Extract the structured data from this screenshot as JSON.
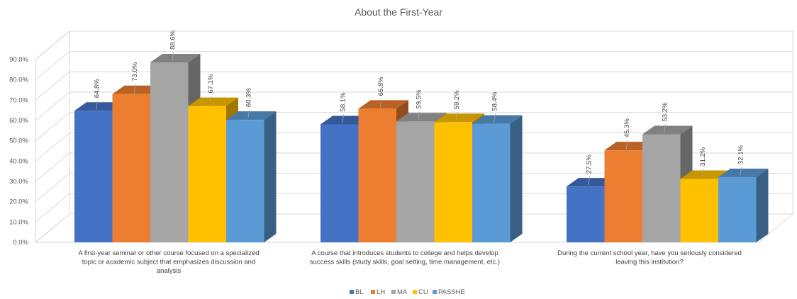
{
  "chart_data": {
    "type": "bar",
    "style": "3d-clustered-column",
    "title": "About the First-Year",
    "xlabel": "",
    "ylabel": "",
    "ylim": [
      0,
      0.9
    ],
    "yticks": [
      "0.0%",
      "10.0%",
      "20.0%",
      "30.0%",
      "40.0%",
      "50.0%",
      "60.0%",
      "70.0%",
      "80.0%",
      "90.0%"
    ],
    "grid": true,
    "legend_position": "bottom",
    "categories": [
      [
        "A first-year seminar or other course focused on a specialized",
        "topic or academic subject that emphasizes discussion and",
        "analysis"
      ],
      [
        "A course that introduces students to college and helps develop",
        "success skills (study skills, goal setting, time management, etc.)"
      ],
      [
        "During the current school year, have you seriously considered",
        "leaving this institution?"
      ]
    ],
    "series": [
      {
        "name": "BL",
        "color": "#4472C4",
        "values": [
          0.648,
          0.581,
          0.275
        ],
        "labels": [
          "64.8%",
          "58.1%",
          "27.5%"
        ]
      },
      {
        "name": "LH",
        "color": "#ED7D31",
        "values": [
          0.73,
          0.658,
          0.453
        ],
        "labels": [
          "73.0%",
          "65.8%",
          "45.3%"
        ]
      },
      {
        "name": "MA",
        "color": "#A5A5A5",
        "values": [
          0.886,
          0.595,
          0.532
        ],
        "labels": [
          "88.6%",
          "59.5%",
          "53.2%"
        ]
      },
      {
        "name": "CU",
        "color": "#FFC000",
        "values": [
          0.671,
          0.592,
          0.312
        ],
        "labels": [
          "67.1%",
          "59.2%",
          "31.2%"
        ]
      },
      {
        "name": "PASSHE",
        "color": "#5B9BD5",
        "values": [
          0.603,
          0.584,
          0.321
        ],
        "labels": [
          "60.3%",
          "58.4%",
          "32.1%"
        ]
      }
    ]
  }
}
